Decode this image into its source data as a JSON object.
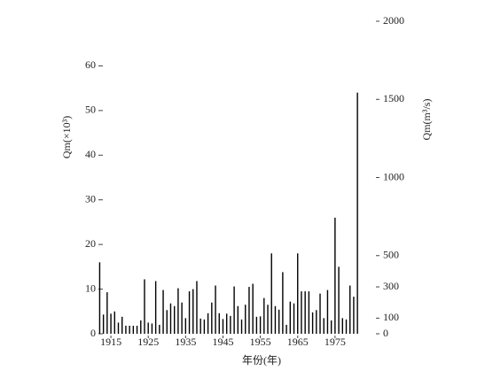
{
  "chart_data": {
    "type": "bar",
    "xlabel": "年份(年)",
    "ylabel": "Qm(×10³)",
    "y2label": "Qm(m³/s)",
    "x": [
      1912,
      1913,
      1914,
      1915,
      1916,
      1917,
      1918,
      1919,
      1920,
      1921,
      1922,
      1923,
      1924,
      1925,
      1926,
      1927,
      1928,
      1929,
      1930,
      1931,
      1932,
      1933,
      1934,
      1935,
      1936,
      1937,
      1938,
      1939,
      1940,
      1941,
      1942,
      1943,
      1944,
      1945,
      1946,
      1947,
      1948,
      1949,
      1950,
      1951,
      1952,
      1953,
      1954,
      1955,
      1956,
      1957,
      1958,
      1959,
      1960,
      1961,
      1962,
      1963,
      1964,
      1965,
      1966,
      1967,
      1968,
      1969,
      1970,
      1971,
      1972,
      1973,
      1974,
      1975,
      1976,
      1977,
      1978,
      1979,
      1980,
      1981,
      1982
    ],
    "values": [
      16,
      4.3,
      9.3,
      4.5,
      5,
      2.5,
      3.8,
      1.8,
      1.8,
      1.8,
      1.8,
      3,
      12.2,
      2.5,
      2.3,
      11.8,
      2,
      9.8,
      5.3,
      6.8,
      6.2,
      10.2,
      7,
      3.5,
      9.5,
      10,
      11.8,
      3.4,
      3.2,
      4.6,
      7,
      10.8,
      4.6,
      3.3,
      4.5,
      4,
      10.6,
      6.2,
      3.2,
      6.5,
      10.5,
      11.2,
      3.8,
      3.9,
      8,
      6.5,
      18,
      6.2,
      5.4,
      13.8,
      2,
      7.2,
      6.8,
      18,
      9.5,
      9.5,
      9.5,
      4.8,
      5.3,
      9,
      3.5,
      9.8,
      3,
      26,
      15,
      3.5,
      3.2,
      10.8,
      8.3,
      54,
      0
    ],
    "color": "#000000",
    "xlim": [
      1910,
      1985
    ],
    "xticks": [
      1915,
      1925,
      1935,
      1945,
      1955,
      1965,
      1975
    ],
    "ylim": [
      0,
      70
    ],
    "yticks": [
      0,
      10,
      20,
      30,
      40,
      50,
      60
    ],
    "y2lim": [
      0,
      2000
    ],
    "y2ticks": [
      0,
      100,
      300,
      500,
      1000,
      1500,
      2000
    ]
  }
}
